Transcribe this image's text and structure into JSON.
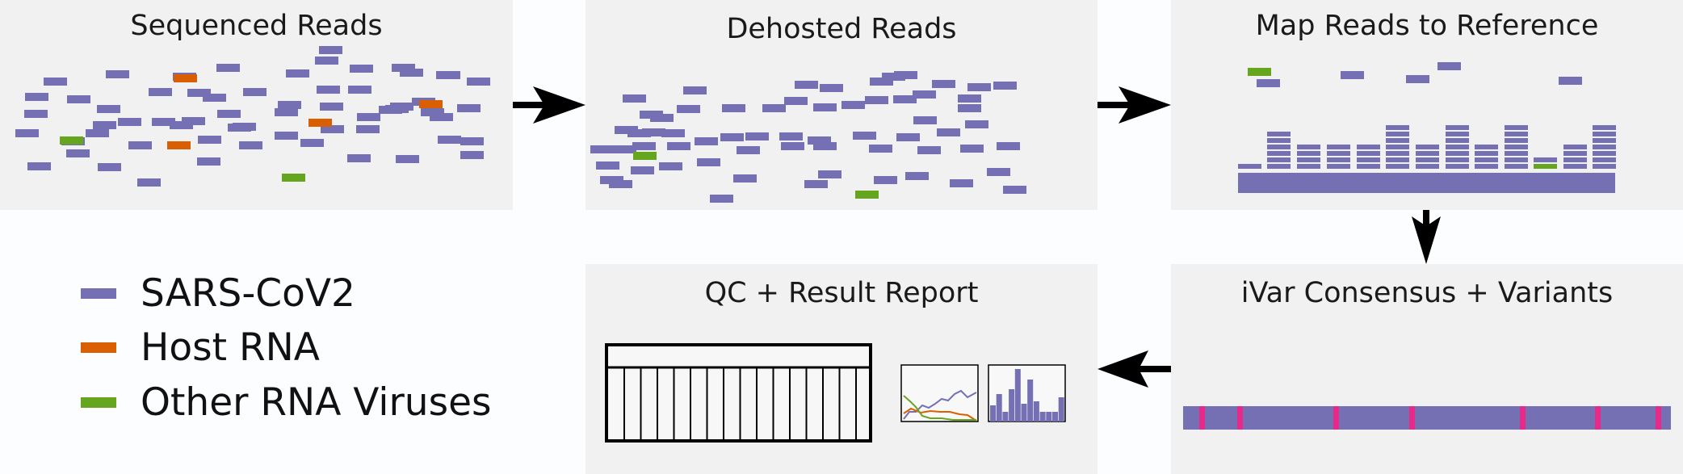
{
  "panels": {
    "sequenced": "Sequenced Reads",
    "dehosted": "Dehosted Reads",
    "map": "Map Reads to Reference",
    "ivar": "iVar Consensus + Variants",
    "qc": "QC + Result Report"
  },
  "legend": [
    {
      "label": "SARS-CoV2",
      "color": "#7570b3"
    },
    {
      "label": "Host RNA",
      "color": "#d95f02"
    },
    {
      "label": "Other RNA Viruses",
      "color": "#66a61e"
    }
  ],
  "colors": {
    "sars": "#7570b3",
    "host": "#d95f02",
    "other": "#66a61e",
    "variant": "#e7298a",
    "panel": "#f2f1f1"
  }
}
